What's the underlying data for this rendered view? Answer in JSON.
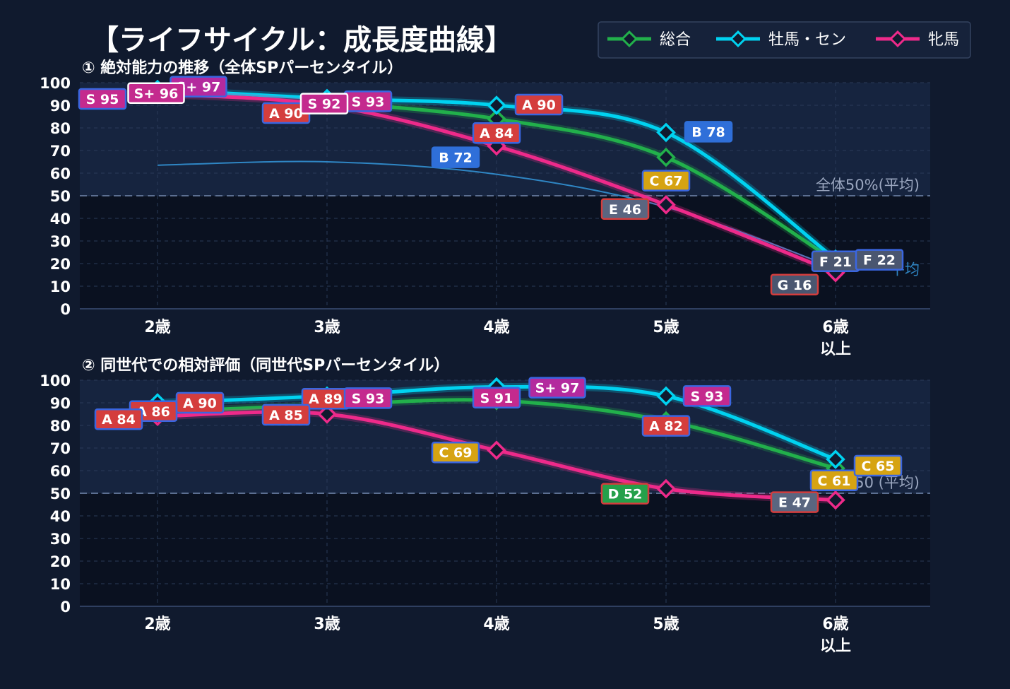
{
  "title": "【ライフサイクル：成長度曲線】",
  "legend": [
    {
      "label": "総合",
      "color": "#22b04b"
    },
    {
      "label": "牡馬・セン",
      "color": "#00d2f0"
    },
    {
      "label": "牝馬",
      "color": "#ee2a8a"
    }
  ],
  "colors": {
    "background": "#101a2e",
    "plot_upper": "#16243f",
    "plot_lower": "#0a1120",
    "grid": "#2a3a58",
    "average_line": "#5c6f91",
    "faint_line": "#2f86c4"
  },
  "chart_data": [
    {
      "type": "line",
      "title": "① 絶対能力の推移（全体SPパーセンタイル）",
      "categories": [
        "2歳",
        "3歳",
        "4歳",
        "5歳",
        "6歳\n以上"
      ],
      "ylim": [
        0,
        100
      ],
      "yticks": [
        0,
        10,
        20,
        30,
        40,
        50,
        60,
        70,
        80,
        90,
        100
      ],
      "grid": true,
      "legend_position": "top-right",
      "reference_line": {
        "y": 50,
        "label": "全体50%(平均)"
      },
      "faint_series": {
        "values": [
          63.5,
          65,
          59.5,
          45,
          18
        ],
        "label": "平均"
      },
      "series": [
        {
          "name": "総合",
          "values": [
            null,
            91.5,
            84,
            67,
            21
          ],
          "labels": [
            null,
            null,
            "A 84",
            "C 67",
            "F 21"
          ]
        },
        {
          "name": "牡馬・セン",
          "values": [
            97,
            93,
            90,
            78,
            22
          ],
          "labels": [
            "S+ 97",
            "S 93",
            "A 90",
            "B 78",
            "F 22"
          ]
        },
        {
          "name": "牝馬",
          "values": [
            95,
            90,
            72,
            46,
            16
          ],
          "labels": [
            "S 95",
            "A 90",
            "B 72",
            "E 46",
            "G 16"
          ]
        }
      ],
      "point_labels": [
        {
          "text": "S+ 96",
          "x": 0,
          "y": 96,
          "grade": "S",
          "boxed": true
        },
        {
          "text": "S 92",
          "x": 1,
          "y": 92,
          "grade": "S",
          "boxed": true
        }
      ]
    },
    {
      "type": "line",
      "title": "② 同世代での相対評価（同世代SPパーセンタイル）",
      "categories": [
        "2歳",
        "3歳",
        "4歳",
        "5歳",
        "6歳\n以上"
      ],
      "ylim": [
        0,
        100
      ],
      "yticks": [
        0,
        10,
        20,
        30,
        40,
        50,
        60,
        70,
        80,
        90,
        100
      ],
      "grid": true,
      "reference_line": {
        "y": 50,
        "label": "SP50 (平均)"
      },
      "series": [
        {
          "name": "総合",
          "values": [
            86,
            89,
            91,
            82,
            61
          ],
          "labels": [
            "A 86",
            "A 89",
            "S 91",
            "A 82",
            "C 61"
          ]
        },
        {
          "name": "牡馬・セン",
          "values": [
            90,
            93,
            97,
            93,
            65
          ],
          "labels": [
            "A 90",
            "S 93",
            "S+ 97",
            "S 93",
            "C 65"
          ]
        },
        {
          "name": "牝馬",
          "values": [
            84,
            85,
            69,
            52,
            47
          ],
          "labels": [
            "A 84",
            "A 85",
            "C 69",
            "D 52",
            "E 47"
          ]
        }
      ]
    }
  ]
}
